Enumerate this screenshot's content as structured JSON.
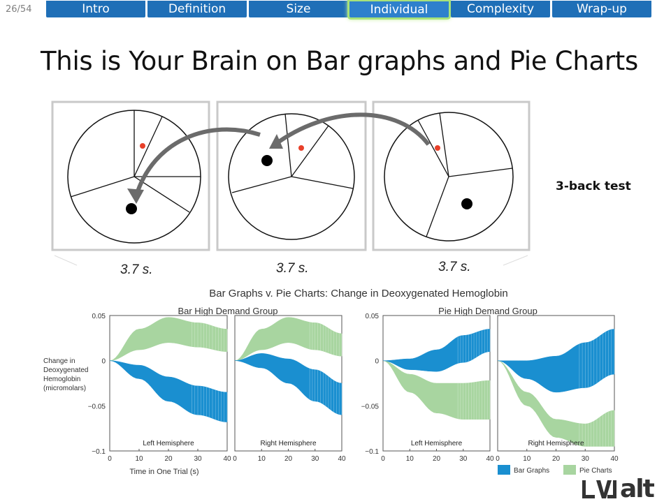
{
  "page_counter": "26/54",
  "nav": {
    "tabs": [
      {
        "label": "Intro",
        "active": false
      },
      {
        "label": "Definition",
        "active": false
      },
      {
        "label": "Size",
        "active": false
      },
      {
        "label": "Individual",
        "active": true
      },
      {
        "label": "Complexity",
        "active": false
      },
      {
        "label": "Wrap-up",
        "active": false
      }
    ],
    "color": "#1f6fb7",
    "active_glow": "#a8e27a"
  },
  "slide": {
    "title": "This is Your Brain on Bar graphs and Pie Charts",
    "test_label": "3-back test",
    "durations": [
      "3.7 s.",
      "3.7 s.",
      "3.7 s."
    ],
    "logo_text": "LVJalt"
  },
  "chart_data": {
    "type": "area",
    "title": "Bar Graphs v. Pie Charts: Change in Deoxygenated Hemoglobin",
    "ylabel": "Change in Deoxygenated Hemoglobin (micromolars)",
    "xlabel": "Time in One Trial (s)",
    "xlim": [
      0,
      40
    ],
    "ylim": [
      -0.1,
      0.05
    ],
    "x_ticks": [
      0,
      10,
      20,
      30,
      40
    ],
    "y_tick_labels": [
      "0.05",
      "0",
      "−0.05",
      "−0.1"
    ],
    "legend": [
      {
        "name": "Bar Graphs",
        "color": "#1a8fd0"
      },
      {
        "name": "Pie Charts",
        "color": "#a8d5a0"
      }
    ],
    "groups": [
      {
        "name": "Bar High Demand Group",
        "panels": [
          {
            "name": "Left Hemisphere",
            "x": [
              0,
              10,
              20,
              30,
              40
            ],
            "bar_upper": [
              0,
              -0.005,
              -0.018,
              -0.028,
              -0.035
            ],
            "bar_lower": [
              0,
              -0.02,
              -0.045,
              -0.06,
              -0.068
            ],
            "pie_upper": [
              0,
              0.035,
              0.048,
              0.042,
              0.035
            ],
            "pie_lower": [
              0,
              0.012,
              0.02,
              0.015,
              0.01
            ]
          },
          {
            "name": "Right Hemisphere",
            "x": [
              0,
              10,
              20,
              30,
              40
            ],
            "bar_upper": [
              0,
              0.008,
              0.002,
              -0.01,
              -0.025
            ],
            "bar_lower": [
              0,
              -0.008,
              -0.025,
              -0.045,
              -0.06
            ],
            "pie_upper": [
              0,
              0.035,
              0.048,
              0.042,
              0.03
            ],
            "pie_lower": [
              0,
              0.012,
              0.02,
              0.012,
              0.005
            ]
          }
        ]
      },
      {
        "name": "Pie High Demand Group",
        "panels": [
          {
            "name": "Left Hemisphere",
            "x": [
              0,
              10,
              20,
              30,
              40
            ],
            "bar_upper": [
              0,
              0.002,
              0.012,
              0.028,
              0.035
            ],
            "bar_lower": [
              0,
              -0.01,
              -0.012,
              -0.002,
              0.01
            ],
            "pie_upper": [
              0,
              -0.015,
              -0.025,
              -0.025,
              -0.022
            ],
            "pie_lower": [
              0,
              -0.035,
              -0.058,
              -0.065,
              -0.065
            ]
          },
          {
            "name": "Right Hemisphere",
            "x": [
              0,
              10,
              20,
              30,
              40
            ],
            "bar_upper": [
              0,
              0.0,
              0.005,
              0.02,
              0.035
            ],
            "bar_lower": [
              0,
              -0.02,
              -0.035,
              -0.03,
              -0.015
            ],
            "pie_upper": [
              0,
              -0.035,
              -0.065,
              -0.07,
              -0.055
            ],
            "pie_lower": [
              0,
              -0.05,
              -0.085,
              -0.095,
              -0.095
            ]
          }
        ]
      }
    ]
  }
}
